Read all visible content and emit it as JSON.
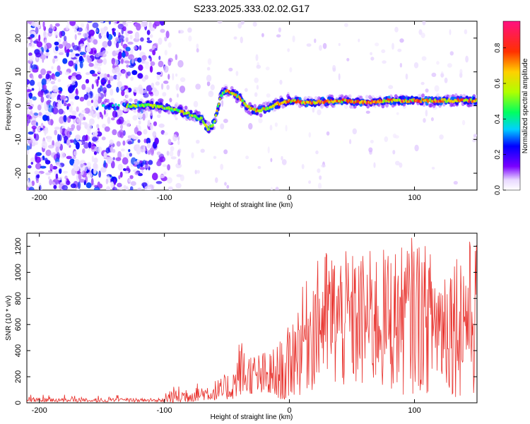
{
  "title": "S233.2025.333.02.02.G17",
  "chart_data": [
    {
      "type": "heatmap",
      "xlabel": "Height of straight line (km)",
      "ylabel": "Frequency (Hz)",
      "xlim": [
        -210,
        150
      ],
      "ylim": [
        -25,
        25
      ],
      "xticks": [
        -200,
        -100,
        0,
        100
      ],
      "yticks": [
        -20,
        -10,
        0,
        10,
        20
      ],
      "colorbar": {
        "label": "Normalized spectral amplitude",
        "range": [
          0,
          0.95
        ],
        "ticks": [
          0.0,
          0.2,
          0.4,
          0.6,
          0.8
        ]
      },
      "ridge": {
        "x": [
          -120,
          -110,
          -100,
          -90,
          -80,
          -70,
          -65,
          -60,
          -55,
          -50,
          -45,
          -40,
          -35,
          -30,
          -25,
          -20,
          -10,
          0,
          10,
          20,
          40,
          60,
          80,
          100,
          120,
          140,
          150
        ],
        "freq": [
          0,
          0,
          -0.5,
          -1.5,
          -2.5,
          -4,
          -7,
          -5,
          3,
          4.5,
          3.5,
          2.5,
          0,
          -1,
          -1.5,
          -1,
          0.5,
          1.5,
          1,
          1,
          1.5,
          1,
          1.5,
          1.5,
          1.5,
          1.5,
          1.5
        ]
      }
    },
    {
      "type": "line",
      "xlabel": "Height of straight line (km)",
      "ylabel": "SNR (10 * v/v)",
      "xlim": [
        -210,
        150
      ],
      "ylim": [
        0,
        1300
      ],
      "xticks": [
        -200,
        -100,
        0,
        100
      ],
      "yticks": [
        0,
        200,
        400,
        600,
        800,
        1000,
        1200
      ],
      "color": "#e8322d",
      "envelope": {
        "x": [
          -210,
          -150,
          -110,
          -95,
          -85,
          -70,
          -55,
          -45,
          -40,
          -30,
          -20,
          -10,
          0,
          10,
          20,
          30,
          50,
          70,
          90,
          100,
          120,
          140,
          150
        ],
        "low": [
          0,
          0,
          0,
          0,
          0,
          20,
          20,
          30,
          60,
          70,
          60,
          40,
          0,
          50,
          80,
          60,
          50,
          50,
          50,
          60,
          60,
          30,
          0
        ],
        "high": [
          40,
          50,
          60,
          120,
          140,
          160,
          190,
          280,
          520,
          400,
          400,
          450,
          600,
          880,
          1060,
          1200,
          1150,
          1180,
          1200,
          1300,
          1100,
          1250,
          1270
        ]
      }
    }
  ]
}
